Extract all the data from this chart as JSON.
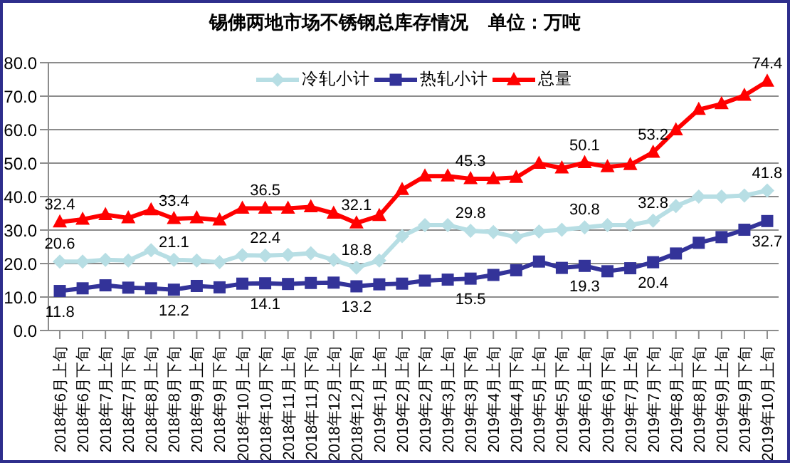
{
  "chart_data": {
    "type": "line",
    "title": "锡佛两地市场不锈钢总库存情况    单位：万吨",
    "categories": [
      "2018年6月上旬",
      "2018年6月下旬",
      "2018年7月上旬",
      "2018年7月下旬",
      "2018年8月上旬",
      "2018年8月下旬",
      "2018年9月上旬",
      "2018年9月下旬",
      "2018年10月上旬",
      "2018年10月下旬",
      "2018年11月上旬",
      "2018年11月下旬",
      "2018年12月上旬",
      "2018年12月下旬",
      "2019年1月上旬",
      "2019年2月上旬",
      "2019年2月下旬",
      "2019年3月上旬",
      "2019年3月下旬",
      "2019年4月上旬",
      "2019年4月下旬",
      "2019年5月上旬",
      "2019年5月下旬",
      "2019年6月上旬",
      "2019年6月下旬",
      "2019年7月上旬",
      "2019年7月下旬",
      "2019年8月上旬",
      "2019年8月下旬",
      "2019年9月上旬",
      "2019年9月下旬",
      "2019年10月上旬"
    ],
    "series": [
      {
        "name": "冷轧小计",
        "color": "#b7dee4",
        "marker": "diamond",
        "values": [
          20.6,
          20.6,
          21.1,
          20.9,
          24.0,
          21.1,
          20.9,
          20.4,
          22.5,
          22.4,
          22.6,
          23.1,
          21.1,
          18.8,
          20.9,
          28.2,
          31.5,
          31.5,
          29.8,
          29.4,
          27.9,
          29.6,
          30.1,
          30.8,
          31.5,
          31.5,
          32.8,
          37.2,
          40.0,
          40.0,
          40.3,
          41.8
        ],
        "value_labels": [
          "20.6",
          null,
          null,
          null,
          null,
          "21.1",
          null,
          null,
          null,
          "22.4",
          null,
          null,
          null,
          "18.8",
          null,
          null,
          null,
          null,
          "29.8",
          null,
          null,
          null,
          null,
          "30.8",
          null,
          null,
          "32.8",
          null,
          null,
          null,
          null,
          "41.8"
        ]
      },
      {
        "name": "热轧小计",
        "color": "#333399",
        "marker": "square",
        "values": [
          11.8,
          12.6,
          13.5,
          12.8,
          12.6,
          12.2,
          13.3,
          12.9,
          14.0,
          14.1,
          13.9,
          14.2,
          14.3,
          13.2,
          13.8,
          14.0,
          14.9,
          15.2,
          15.5,
          16.6,
          18.0,
          20.6,
          18.7,
          19.3,
          17.7,
          18.6,
          20.4,
          23.0,
          26.2,
          27.9,
          30.1,
          32.7
        ],
        "value_labels": [
          "11.8",
          null,
          null,
          null,
          null,
          "12.2",
          null,
          null,
          null,
          "14.1",
          null,
          null,
          null,
          "13.2",
          null,
          null,
          null,
          null,
          "15.5",
          null,
          null,
          null,
          null,
          "19.3",
          null,
          null,
          "20.4",
          null,
          null,
          null,
          null,
          "32.7"
        ]
      },
      {
        "name": "总量",
        "color": "#ff0000",
        "marker": "triangle",
        "values": [
          32.4,
          33.2,
          34.6,
          33.6,
          36.0,
          33.4,
          33.6,
          33.0,
          36.5,
          36.5,
          36.5,
          36.9,
          35.0,
          32.1,
          34.3,
          42.1,
          46.1,
          46.1,
          45.3,
          45.3,
          45.7,
          49.9,
          48.5,
          50.1,
          48.9,
          49.5,
          53.2,
          59.9,
          66.0,
          67.7,
          70.2,
          74.4
        ],
        "value_labels": [
          "32.4",
          null,
          null,
          null,
          null,
          "33.4",
          null,
          null,
          null,
          "36.5",
          null,
          null,
          null,
          "32.1",
          null,
          null,
          null,
          null,
          "45.3",
          null,
          null,
          null,
          null,
          "50.1",
          null,
          null,
          "53.2",
          null,
          null,
          null,
          null,
          "74.4"
        ]
      }
    ],
    "ylim": [
      0,
      80
    ],
    "yticks": [
      {
        "value": 0,
        "label": "0.0"
      },
      {
        "value": 10,
        "label": "10.0"
      },
      {
        "value": 20,
        "label": "20.0"
      },
      {
        "value": 30,
        "label": "30.0"
      },
      {
        "value": 40,
        "label": "40.0"
      },
      {
        "value": 50,
        "label": "50.0"
      },
      {
        "value": 60,
        "label": "60.0"
      },
      {
        "value": 70,
        "label": "70.0"
      },
      {
        "value": 80,
        "label": "80.0"
      }
    ],
    "grid": "y",
    "legend": "top"
  }
}
